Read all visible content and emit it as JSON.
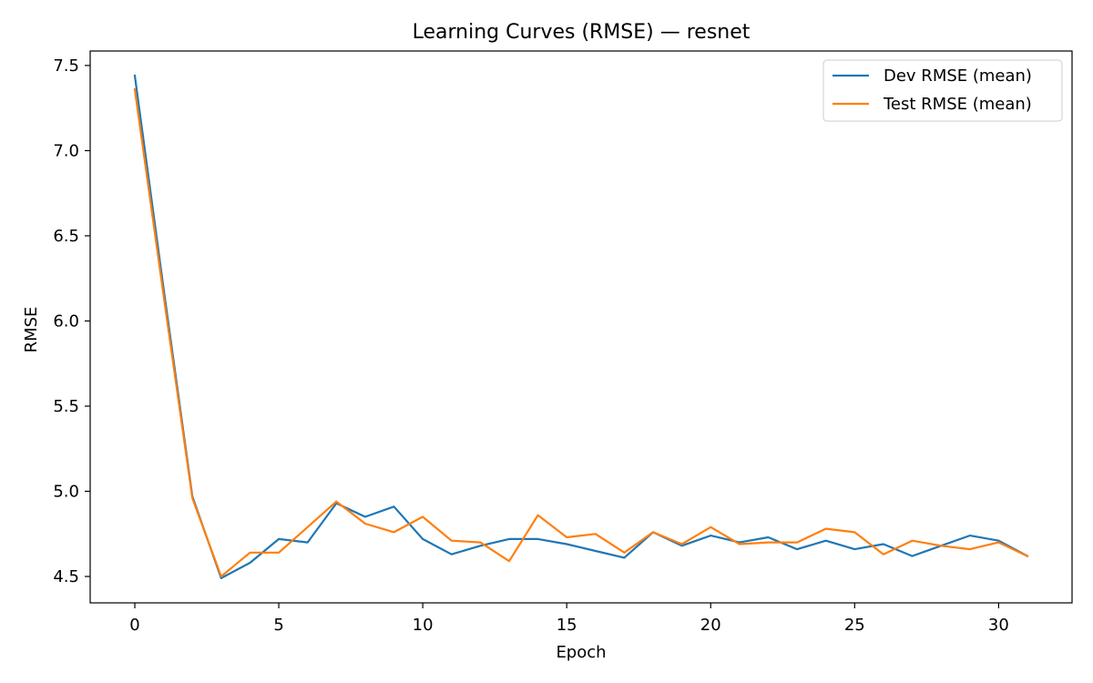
{
  "chart_data": {
    "type": "line",
    "title": "Learning Curves (RMSE) — resnet",
    "xlabel": "Epoch",
    "ylabel": "RMSE",
    "xlim": [
      -1.55,
      32.55
    ],
    "ylim": [
      4.345,
      7.585
    ],
    "xticks": [
      0,
      5,
      10,
      15,
      20,
      25,
      30
    ],
    "yticks": [
      4.5,
      5.0,
      5.5,
      6.0,
      6.5,
      7.0,
      7.5
    ],
    "xtick_labels": [
      "0",
      "5",
      "10",
      "15",
      "20",
      "25",
      "30"
    ],
    "ytick_labels": [
      "4.5",
      "5.0",
      "5.5",
      "6.0",
      "6.5",
      "7.0",
      "7.5"
    ],
    "grid": false,
    "legend_position": "top-right",
    "x": [
      0,
      1,
      2,
      3,
      4,
      5,
      6,
      7,
      8,
      9,
      10,
      11,
      12,
      13,
      14,
      15,
      16,
      17,
      18,
      19,
      20,
      21,
      22,
      23,
      24,
      25,
      26,
      27,
      28,
      29,
      30,
      31
    ],
    "series": [
      {
        "name": "Dev RMSE (mean)",
        "color": "#1f77b4",
        "values": [
          7.44,
          6.19,
          4.97,
          4.49,
          4.58,
          4.72,
          4.7,
          4.93,
          4.85,
          4.91,
          4.72,
          4.63,
          4.68,
          4.72,
          4.72,
          4.69,
          4.65,
          4.61,
          4.76,
          4.68,
          4.74,
          4.7,
          4.73,
          4.66,
          4.71,
          4.66,
          4.69,
          4.62,
          4.68,
          4.74,
          4.71,
          4.62
        ]
      },
      {
        "name": "Test RMSE (mean)",
        "color": "#ff7f0e",
        "values": [
          7.36,
          6.15,
          4.96,
          4.5,
          4.64,
          4.64,
          4.79,
          4.94,
          4.81,
          4.76,
          4.85,
          4.71,
          4.7,
          4.59,
          4.86,
          4.73,
          4.75,
          4.64,
          4.76,
          4.69,
          4.79,
          4.69,
          4.7,
          4.7,
          4.78,
          4.76,
          4.63,
          4.71,
          4.68,
          4.66,
          4.7,
          4.62
        ]
      }
    ]
  }
}
